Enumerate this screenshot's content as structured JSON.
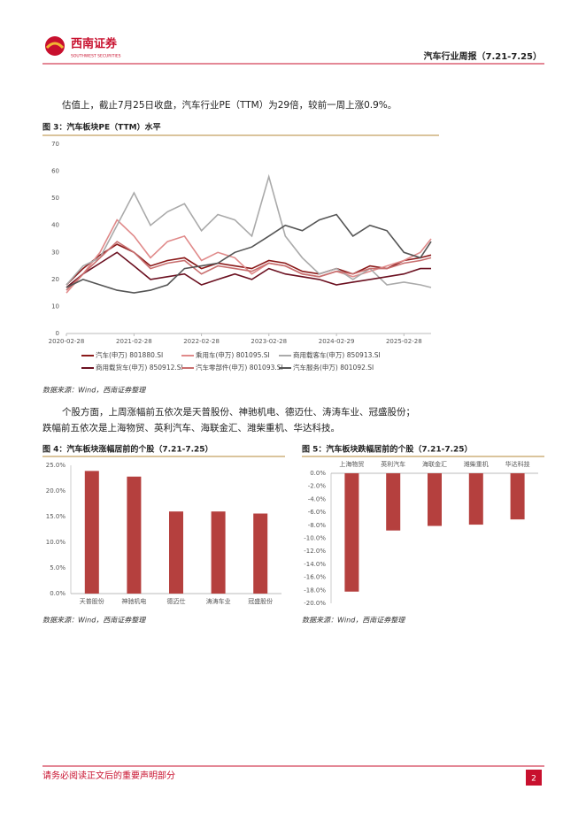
{
  "header": {
    "logo_cn": "西南证券",
    "logo_en": "SOUTHWEST SECURITIES",
    "report_title": "汽车行业周报（7.21-7.25）"
  },
  "paragraphs": [
    "估值上，截止7月25日收盘，汽车行业PE（TTM）为29倍，较前一周上涨0.9%。",
    "个股方面，上周涨幅前五依次是天普股份、神驰机电、德迈仕、涛涛车业、冠盛股份；",
    "跌幅前五依次是上海物贸、英利汽车、海联金汇、潍柴重机、华达科技。"
  ],
  "footer": {
    "notice": "请务必阅读正文后的重要声明部分",
    "page": "2"
  },
  "chart_data": [
    {
      "type": "line",
      "title": "图 3：汽车板块PE（TTM）水平",
      "source": "数据来源：Wind，西南证券整理",
      "x": [
        "2020-02-28",
        "2020-05-28",
        "2020-08-28",
        "2020-11-28",
        "2021-02-28",
        "2021-05-28",
        "2021-08-28",
        "2021-11-28",
        "2022-02-28",
        "2022-05-28",
        "2022-08-28",
        "2022-11-28",
        "2023-02-28",
        "2023-05-28",
        "2023-08-28",
        "2023-11-28",
        "2024-02-29",
        "2024-05-28",
        "2024-08-28",
        "2024-11-28",
        "2025-02-28",
        "2025-05-28",
        "2025-07-25"
      ],
      "xlim": [
        "2020-02-28",
        "2025-07-25"
      ],
      "xticks": [
        "2020-02-28",
        "2021-02-28",
        "2022-02-28",
        "2023-02-28",
        "2024-02-29",
        "2025-02-28"
      ],
      "ylim": [
        0,
        70
      ],
      "yticks": [
        0,
        10,
        20,
        30,
        40,
        50,
        60,
        70
      ],
      "series": [
        {
          "name": "汽车(申万) 801880.SI",
          "color": "#8b1a1a",
          "values": [
            18,
            24,
            29,
            33,
            30,
            25,
            27,
            28,
            24,
            26,
            25,
            24,
            27,
            26,
            23,
            22,
            24,
            22,
            25,
            24,
            27,
            28,
            29
          ]
        },
        {
          "name": "乘用车(申万) 801095.SI",
          "color": "#e08a8a",
          "values": [
            15,
            22,
            30,
            42,
            36,
            28,
            34,
            36,
            27,
            30,
            28,
            22,
            26,
            25,
            22,
            21,
            23,
            21,
            23,
            25,
            27,
            30,
            35
          ]
        },
        {
          "name": "商用载客车(申万) 850913.SI",
          "color": "#aaaaaa",
          "values": [
            18,
            25,
            28,
            40,
            52,
            40,
            45,
            48,
            38,
            44,
            42,
            36,
            58,
            36,
            28,
            22,
            24,
            20,
            24,
            18,
            19,
            18,
            17
          ]
        },
        {
          "name": "商用载货车(申万) 850912.SI",
          "color": "#6b1020",
          "values": [
            17,
            22,
            26,
            30,
            25,
            20,
            21,
            22,
            18,
            20,
            22,
            20,
            24,
            22,
            21,
            20,
            18,
            19,
            20,
            21,
            22,
            24,
            24
          ]
        },
        {
          "name": "汽车零部件(申万) 801093.SI",
          "color": "#c86e6e",
          "values": [
            16,
            22,
            28,
            34,
            30,
            24,
            26,
            27,
            22,
            25,
            24,
            23,
            26,
            25,
            22,
            21,
            23,
            22,
            24,
            24,
            26,
            27,
            28
          ]
        },
        {
          "name": "汽车服务(申万) 801092.SI",
          "color": "#555555",
          "values": [
            17,
            20,
            18,
            16,
            15,
            16,
            18,
            24,
            25,
            26,
            30,
            32,
            36,
            40,
            38,
            42,
            44,
            36,
            40,
            38,
            30,
            28,
            34
          ]
        }
      ]
    },
    {
      "type": "bar",
      "title": "图 4：汽车板块涨幅居前的个股（7.21-7.25）",
      "source": "数据来源：Wind，西南证券整理",
      "color": "#b5403e",
      "categories": [
        "天普股份",
        "神驰机电",
        "德迈仕",
        "涛涛车业",
        "冠盛股份"
      ],
      "values": [
        23.9,
        22.8,
        16.0,
        16.0,
        15.6
      ],
      "ylim": [
        0,
        25
      ],
      "yticks": [
        {
          "value": 0,
          "label": "0.0%"
        },
        {
          "value": 5,
          "label": "5.0%"
        },
        {
          "value": 10,
          "label": "10.0%"
        },
        {
          "value": 15,
          "label": "15.0%"
        },
        {
          "value": 20,
          "label": "20.0%"
        },
        {
          "value": 25,
          "label": "25.0%"
        }
      ]
    },
    {
      "type": "bar",
      "title": "图 5：汽车板块跌幅居前的个股（7.21-7.25）",
      "source": "数据来源：Wind，西南证券整理",
      "color": "#b5403e",
      "categories": [
        "上海物贸",
        "英利汽车",
        "海联金汇",
        "潍柴重机",
        "华达科技"
      ],
      "values": [
        -18.2,
        -8.8,
        -8.1,
        -7.9,
        -7.1
      ],
      "ylim": [
        -20,
        0
      ],
      "yticks": [
        {
          "value": 0,
          "label": "0.0%"
        },
        {
          "value": -2,
          "label": "-2.0%"
        },
        {
          "value": -4,
          "label": "-4.0%"
        },
        {
          "value": -6,
          "label": "-6.0%"
        },
        {
          "value": -8,
          "label": "-8.0%"
        },
        {
          "value": -10,
          "label": "-10.0%"
        },
        {
          "value": -12,
          "label": "-12.0%"
        },
        {
          "value": -14,
          "label": "-14.0%"
        },
        {
          "value": -16,
          "label": "-16.0%"
        },
        {
          "value": -18,
          "label": "-18.0%"
        },
        {
          "value": -20,
          "label": "-20.0%"
        }
      ]
    }
  ]
}
